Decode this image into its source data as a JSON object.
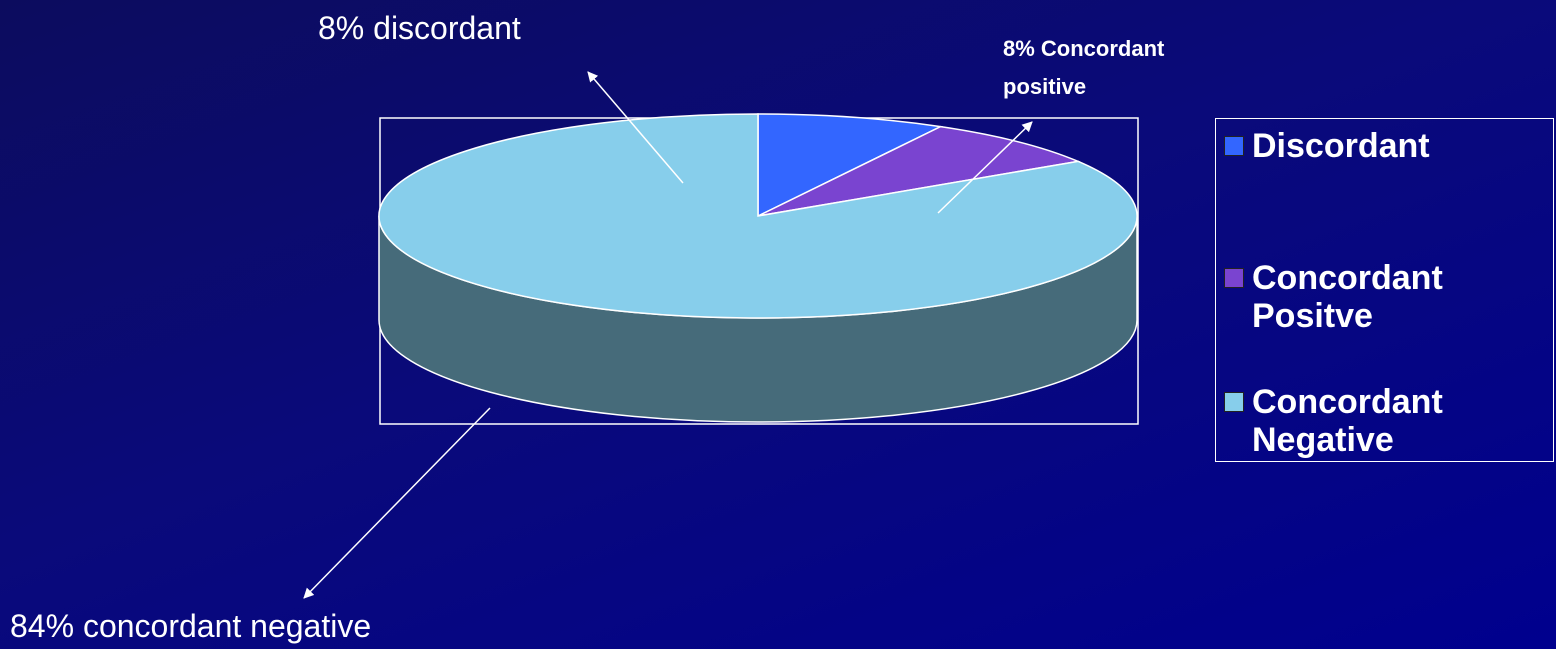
{
  "chart_data": {
    "type": "pie3d",
    "categories": [
      "Discordant",
      "Concordant Positve",
      "Concordant Negative"
    ],
    "values": [
      8,
      8,
      84
    ],
    "value_labels": [
      "8% discordant",
      "8% Concordant positive",
      "84% concordant negative"
    ],
    "colors": [
      "#3366ff",
      "#7a44d0",
      "#87ceeb"
    ],
    "legend": "right"
  }
}
